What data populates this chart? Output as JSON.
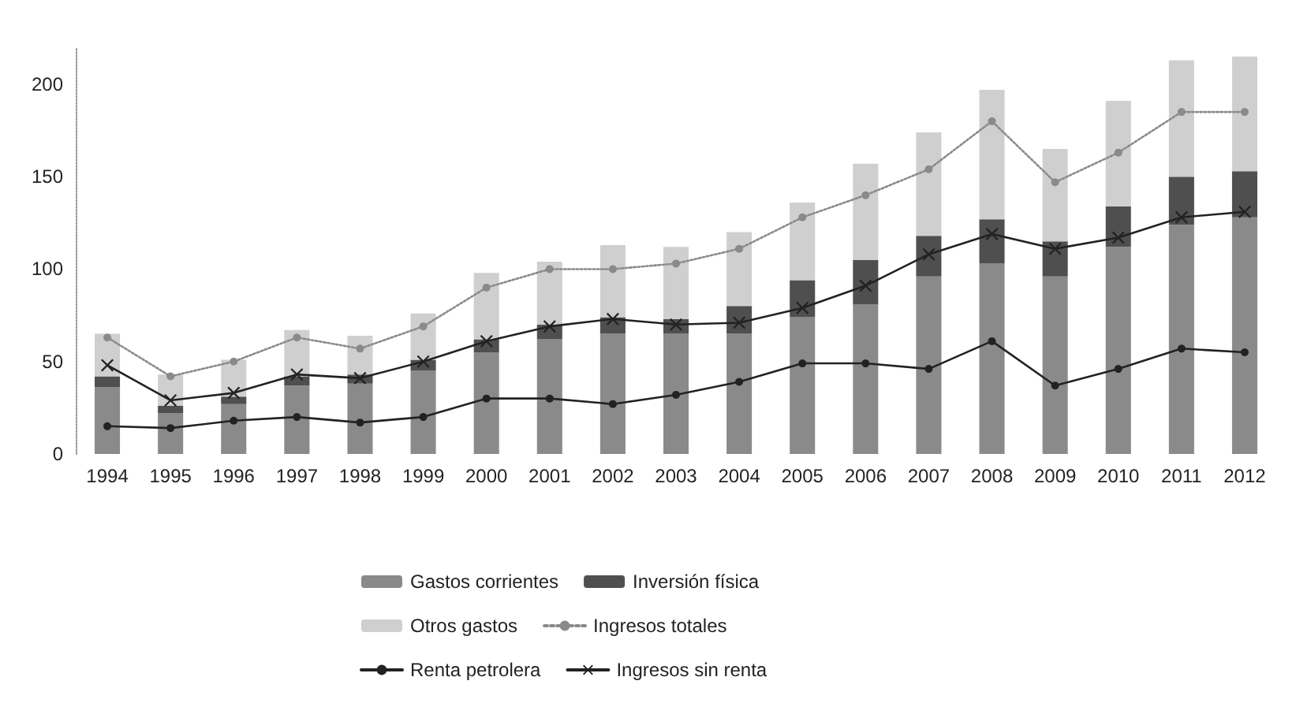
{
  "chart_data": {
    "type": "bar",
    "stacked": true,
    "categories": [
      "1994",
      "1995",
      "1996",
      "1997",
      "1998",
      "1999",
      "2000",
      "2001",
      "2002",
      "2003",
      "2004",
      "2005",
      "2006",
      "2007",
      "2008",
      "2009",
      "2010",
      "2011",
      "2012"
    ],
    "ylim": [
      0,
      220
    ],
    "yticks": [
      0,
      50,
      100,
      150,
      200
    ],
    "grid": false,
    "legend": "bottom",
    "series": [
      {
        "name": "Gastos corrientes",
        "color": "#8a8a8a",
        "values": [
          36,
          22,
          27,
          37,
          38,
          45,
          55,
          62,
          65,
          65,
          65,
          74,
          81,
          96,
          103,
          96,
          112,
          124,
          128
        ]
      },
      {
        "name": "Inversión física",
        "color": "#4f4f4f",
        "values": [
          6,
          4,
          4,
          5,
          5,
          6,
          7,
          8,
          9,
          8,
          15,
          20,
          24,
          22,
          24,
          19,
          22,
          26,
          25
        ]
      },
      {
        "name": "Otros gastos",
        "color": "#cfcfcf",
        "values": [
          23,
          17,
          20,
          25,
          21,
          25,
          36,
          34,
          39,
          39,
          40,
          42,
          52,
          56,
          70,
          50,
          57,
          63,
          62
        ]
      },
      {
        "name": "Ingresos totales",
        "type": "line",
        "color": "#8a8a8a",
        "marker": "circle",
        "line_style": "dotted",
        "values": [
          63,
          42,
          50,
          63,
          57,
          69,
          90,
          100,
          100,
          103,
          111,
          128,
          140,
          154,
          180,
          147,
          163,
          185,
          185
        ]
      },
      {
        "name": "Renta petrolera",
        "type": "line",
        "color": "#222222",
        "marker": "circle",
        "line_style": "solid",
        "values": [
          15,
          14,
          18,
          20,
          17,
          20,
          30,
          30,
          27,
          32,
          39,
          49,
          49,
          46,
          61,
          37,
          46,
          57,
          55
        ]
      },
      {
        "name": "Ingresos sin renta",
        "type": "line",
        "color": "#222222",
        "marker": "cross",
        "line_style": "solid",
        "values": [
          48,
          29,
          33,
          43,
          41,
          50,
          61,
          69,
          73,
          70,
          71,
          79,
          91,
          108,
          119,
          111,
          117,
          128,
          131
        ]
      }
    ]
  }
}
